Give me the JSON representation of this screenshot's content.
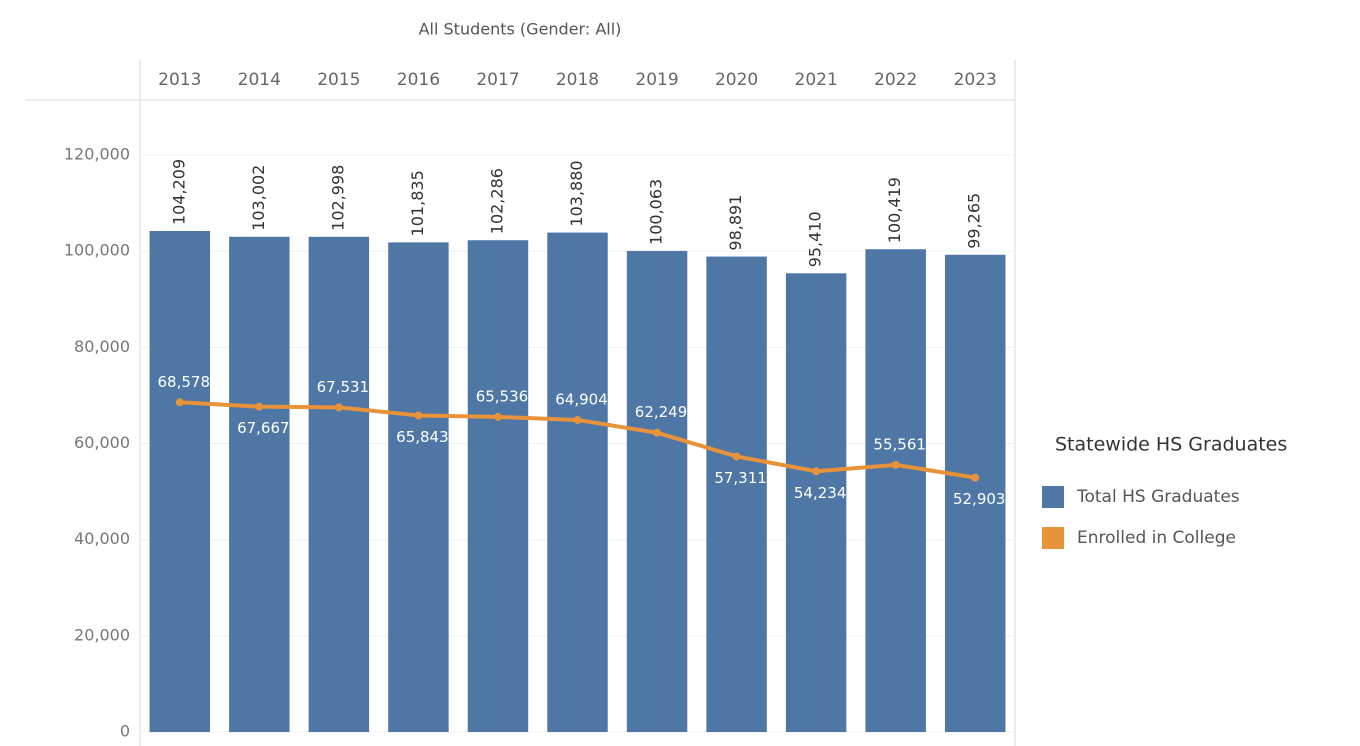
{
  "chart_data": {
    "type": "bar",
    "title": "All Students (Gender: All)",
    "legend_title": "Statewide HS Graduates",
    "legend_position": "right",
    "grid": true,
    "categories": [
      "2013",
      "2014",
      "2015",
      "2016",
      "2017",
      "2018",
      "2019",
      "2020",
      "2021",
      "2022",
      "2023"
    ],
    "series": [
      {
        "name": "Total HS Graduates",
        "color": "#4e77a6",
        "type": "bar",
        "values": [
          104209,
          103002,
          102998,
          101835,
          102286,
          103880,
          100063,
          98891,
          95410,
          100419,
          99265
        ],
        "value_labels": [
          "104,209",
          "103,002",
          "102,998",
          "101,835",
          "102,286",
          "103,880",
          "100,063",
          "98,891",
          "95,410",
          "100,419",
          "99,265"
        ]
      },
      {
        "name": "Enrolled in College",
        "color": "#e8923a",
        "type": "line",
        "values": [
          68578,
          67667,
          67531,
          65843,
          65536,
          64904,
          62249,
          57311,
          54234,
          55561,
          52903
        ],
        "value_labels": [
          "68,578",
          "67,667",
          "67,531",
          "65,843",
          "65,536",
          "64,904",
          "62,249",
          "57,311",
          "54,234",
          "55,561",
          "52,903"
        ]
      }
    ],
    "ylim": [
      0,
      130000
    ],
    "yticks": [
      0,
      {
        "value": 20000,
        "label": "20,000"
      },
      {
        "value": 40000,
        "label": "40,000"
      },
      {
        "value": 60000,
        "label": "60,000"
      },
      {
        "value": 80000,
        "label": "80,000"
      },
      {
        "value": 100000,
        "label": "100,000"
      },
      {
        "value": 120000,
        "label": "120,000"
      }
    ]
  }
}
